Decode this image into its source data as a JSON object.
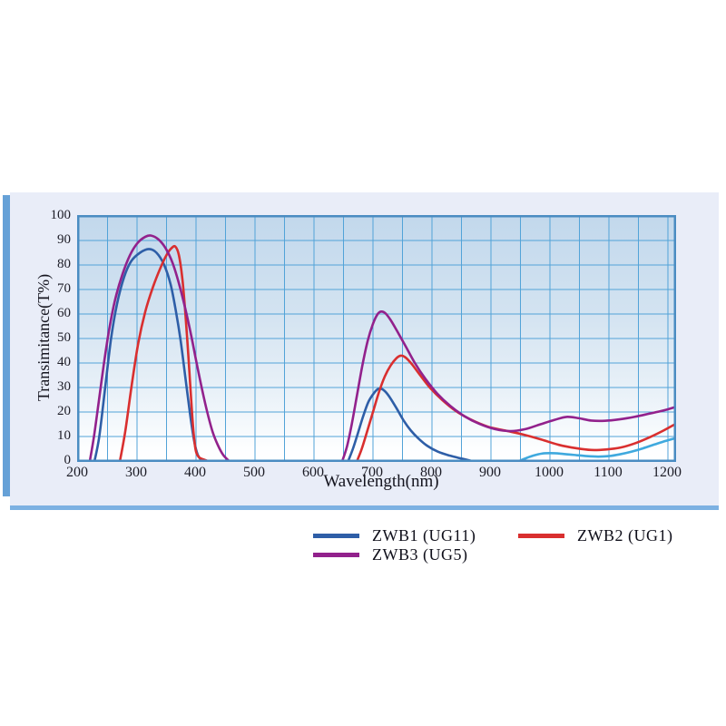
{
  "panel": {
    "background": "#e9edf8",
    "bottom_border_color": "#7cb1e2",
    "left_bar_color": "#66a1d7"
  },
  "chart_data": {
    "type": "line",
    "title": "",
    "xlabel": "Wavelength(nm)",
    "ylabel": "Transimitance(T%)",
    "xlim": [
      200,
      1212
    ],
    "ylim": [
      0,
      100
    ],
    "x_tick_values": [
      200,
      300,
      400,
      500,
      600,
      700,
      800,
      900,
      1000,
      1100,
      1200
    ],
    "x_tick_labels": [
      "200",
      "300",
      "400",
      "500",
      "600",
      "700",
      "800",
      "900",
      "1000",
      "1100",
      "1200"
    ],
    "y_tick_values": [
      0,
      10,
      20,
      30,
      40,
      50,
      60,
      70,
      80,
      90,
      100
    ],
    "y_tick_labels": [
      "0",
      "10",
      "20",
      "30",
      "40",
      "50",
      "60",
      "70",
      "80",
      "90",
      "100"
    ],
    "grid": {
      "on": true,
      "x_step": 50,
      "y_step": 10,
      "color": "#52a3d8",
      "border_color": "#4a8cc2"
    },
    "series": [
      {
        "id": "zwb1",
        "name": "ZWB1 (UG11)",
        "color": "#2e5ea7",
        "segments": [
          [
            [
              228,
              0
            ],
            [
              236,
              10
            ],
            [
              246,
              30
            ],
            [
              256,
              50
            ],
            [
              266,
              64
            ],
            [
              278,
              75
            ],
            [
              290,
              81.5
            ],
            [
              305,
              85
            ],
            [
              320,
              86.5
            ],
            [
              333,
              85
            ],
            [
              346,
              80
            ],
            [
              357,
              72
            ],
            [
              366,
              61
            ],
            [
              374,
              49
            ],
            [
              382,
              34
            ],
            [
              390,
              19
            ],
            [
              397,
              8
            ],
            [
              403,
              2.5
            ],
            [
              410,
              0
            ]
          ],
          [
            [
              658,
              0
            ],
            [
              666,
              5
            ],
            [
              674,
              11
            ],
            [
              683,
              18
            ],
            [
              692,
              24
            ],
            [
              701,
              27.5
            ],
            [
              708,
              29.3
            ],
            [
              714,
              29.5
            ],
            [
              721,
              28.3
            ],
            [
              729,
              25.8
            ],
            [
              740,
              21.5
            ],
            [
              752,
              16.5
            ],
            [
              764,
              12.5
            ],
            [
              777,
              9.2
            ],
            [
              792,
              6.2
            ],
            [
              810,
              3.8
            ],
            [
              830,
              2.2
            ],
            [
              850,
              1
            ],
            [
              868,
              0
            ]
          ]
        ]
      },
      {
        "id": "cyan",
        "name": "",
        "color": "#3fa9de",
        "segments": [
          [
            [
              948,
              0
            ],
            [
              960,
              1.2
            ],
            [
              972,
              2.2
            ],
            [
              986,
              3
            ],
            [
              1000,
              3.2
            ],
            [
              1018,
              3
            ],
            [
              1040,
              2.5
            ],
            [
              1062,
              2
            ],
            [
              1082,
              1.8
            ],
            [
              1100,
              2
            ],
            [
              1118,
              2.7
            ],
            [
              1138,
              3.8
            ],
            [
              1158,
              5.2
            ],
            [
              1178,
              6.8
            ],
            [
              1196,
              8.2
            ],
            [
              1212,
              9.3
            ]
          ]
        ]
      },
      {
        "id": "zwb2",
        "name": "ZWB2 (UG1)",
        "color": "#d92f2f",
        "segments": [
          [
            [
              271,
              0
            ],
            [
              280,
              12
            ],
            [
              291,
              31
            ],
            [
              302,
              48
            ],
            [
              314,
              61
            ],
            [
              327,
              71
            ],
            [
              340,
              79
            ],
            [
              351,
              84.5
            ],
            [
              359,
              87
            ],
            [
              365,
              87.5
            ],
            [
              371,
              84
            ],
            [
              377,
              74
            ],
            [
              382,
              60
            ],
            [
              387,
              43
            ],
            [
              391,
              28
            ],
            [
              395,
              14
            ],
            [
              399,
              5
            ],
            [
              404,
              1.8
            ],
            [
              412,
              0.7
            ],
            [
              420,
              0
            ]
          ],
          [
            [
              673,
              0
            ],
            [
              681,
              5
            ],
            [
              690,
              12
            ],
            [
              700,
              20
            ],
            [
              710,
              28
            ],
            [
              720,
              34.5
            ],
            [
              730,
              39
            ],
            [
              740,
              42
            ],
            [
              747,
              43
            ],
            [
              755,
              42.3
            ],
            [
              766,
              39.5
            ],
            [
              780,
              35
            ],
            [
              797,
              29.8
            ],
            [
              817,
              25
            ],
            [
              840,
              20.5
            ],
            [
              865,
              17
            ],
            [
              895,
              14
            ],
            [
              925,
              12.4
            ],
            [
              955,
              10.8
            ],
            [
              985,
              8.8
            ],
            [
              1015,
              6.6
            ],
            [
              1045,
              5.2
            ],
            [
              1070,
              4.5
            ],
            [
              1095,
              4.7
            ],
            [
              1120,
              5.5
            ],
            [
              1145,
              7.3
            ],
            [
              1170,
              9.8
            ],
            [
              1193,
              12.5
            ],
            [
              1212,
              15
            ]
          ]
        ]
      },
      {
        "id": "zwb3",
        "name": "ZWB3 (UG5)",
        "color": "#92218c",
        "segments": [
          [
            [
              220,
              0
            ],
            [
              227,
              10
            ],
            [
              235,
              24
            ],
            [
              244,
              40
            ],
            [
              253,
              54
            ],
            [
              263,
              66
            ],
            [
              275,
              76
            ],
            [
              288,
              84
            ],
            [
              301,
              89
            ],
            [
              314,
              91.5
            ],
            [
              324,
              92
            ],
            [
              336,
              90.5
            ],
            [
              348,
              87
            ],
            [
              360,
              81
            ],
            [
              371,
              72.5
            ],
            [
              382,
              62
            ],
            [
              392,
              51
            ],
            [
              401,
              40
            ],
            [
              410,
              29.5
            ],
            [
              419,
              20
            ],
            [
              428,
              12
            ],
            [
              437,
              6.5
            ],
            [
              446,
              2.5
            ],
            [
              456,
              0
            ]
          ],
          [
            [
              648,
              0
            ],
            [
              656,
              6
            ],
            [
              664,
              15
            ],
            [
              673,
              27
            ],
            [
              682,
              39
            ],
            [
              691,
              49
            ],
            [
              700,
              56
            ],
            [
              708,
              60
            ],
            [
              714,
              61
            ],
            [
              721,
              60.3
            ],
            [
              730,
              57.5
            ],
            [
              741,
              53
            ],
            [
              755,
              47
            ],
            [
              771,
              40
            ],
            [
              789,
              33.5
            ],
            [
              809,
              27.5
            ],
            [
              831,
              22.5
            ],
            [
              855,
              18.3
            ],
            [
              880,
              15.2
            ],
            [
              907,
              13
            ],
            [
              933,
              12.2
            ],
            [
              958,
              13
            ],
            [
              984,
              15
            ],
            [
              1008,
              16.8
            ],
            [
              1028,
              18
            ],
            [
              1048,
              17.5
            ],
            [
              1070,
              16.5
            ],
            [
              1093,
              16.4
            ],
            [
              1118,
              17
            ],
            [
              1143,
              18
            ],
            [
              1168,
              19.3
            ],
            [
              1192,
              20.6
            ],
            [
              1212,
              22
            ]
          ]
        ]
      }
    ],
    "legend": {
      "position": "below-chart",
      "entries": [
        {
          "label": "ZWB1 (UG11)",
          "color": "#2e5ea7"
        },
        {
          "label": "ZWB2 (UG1)",
          "color": "#d92f2f"
        },
        {
          "label": "ZWB3 (UG5)",
          "color": "#92218c"
        }
      ]
    }
  }
}
